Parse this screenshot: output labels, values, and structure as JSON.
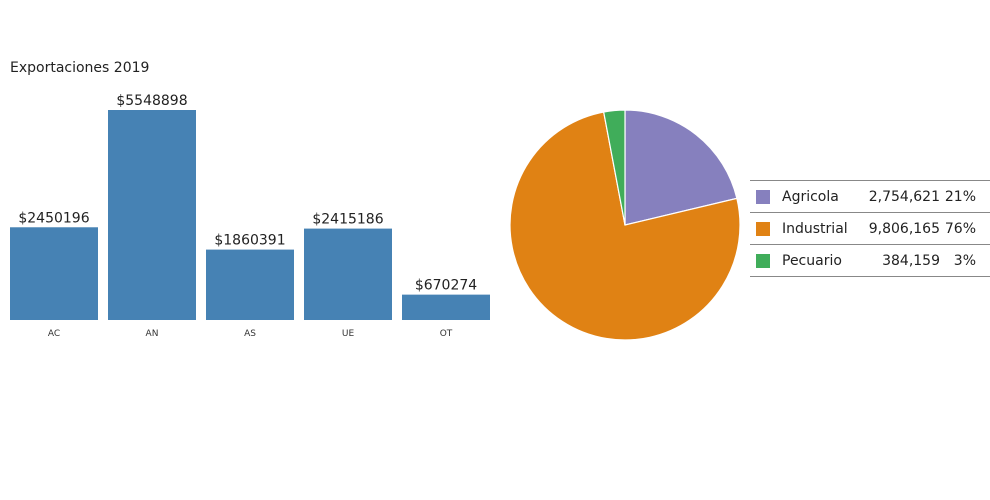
{
  "chart_data": [
    {
      "type": "bar",
      "title": "Exportaciones 2019",
      "categories": [
        "AC",
        "AN",
        "AS",
        "UE",
        "OT"
      ],
      "values": [
        2450196,
        5548898,
        1860391,
        2415186,
        670274
      ],
      "data_labels": [
        "$2450196",
        "$5548898",
        "$1860391",
        "$2415186",
        "$670274"
      ],
      "ylim": [
        0,
        5548898
      ],
      "color": "#4682b4",
      "grid": false
    },
    {
      "type": "pie",
      "legend_placement": "right",
      "slices": [
        {
          "name": "Agricola",
          "value": 2754621,
          "value_label": "2,754,621",
          "pct_label": "21%",
          "color": "#8680be"
        },
        {
          "name": "Industrial",
          "value": 9806165,
          "value_label": "9,806,165",
          "pct_label": "76%",
          "color": "#e08214"
        },
        {
          "name": "Pecuario",
          "value": 384159,
          "value_label": "384,159",
          "pct_label": "3%",
          "color": "#40ad5a"
        }
      ]
    }
  ]
}
